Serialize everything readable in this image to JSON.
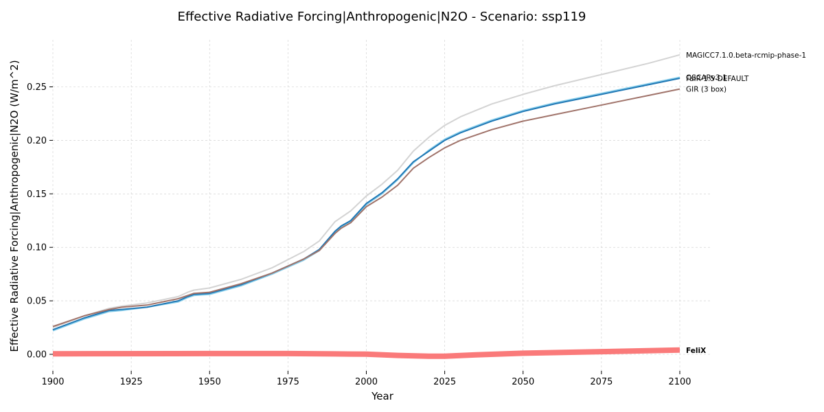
{
  "chart_data": {
    "type": "line",
    "title": "Effective Radiative Forcing|Anthropogenic|N2O - Scenario: ssp119",
    "xlabel": "Year",
    "ylabel": "Effective Radiative Forcing|Anthropogenic|N2O (W/m^2)",
    "xlim": [
      1900,
      2110
    ],
    "ylim": [
      -0.017,
      0.29
    ],
    "xticks": [
      1900,
      1925,
      1950,
      1975,
      2000,
      2025,
      2050,
      2075,
      2100
    ],
    "xtick_labels": [
      "1900",
      "1925",
      "1950",
      "1975",
      "2000",
      "2025",
      "2050",
      "2075",
      "2100"
    ],
    "yticks": [
      0.0,
      0.05,
      0.1,
      0.15,
      0.2,
      0.25
    ],
    "ytick_labels": [
      "0.00",
      "0.05",
      "0.10",
      "0.15",
      "0.20",
      "0.25"
    ],
    "grid": true,
    "legend": "end-of-line labels",
    "series": [
      {
        "name": "MAGICC7.1.0.beta-rcmip-phase-1",
        "color": "#d3d3d3",
        "bold": false,
        "x": [
          1900,
          1910,
          1918,
          1922,
          1930,
          1940,
          1943,
          1945,
          1950,
          1960,
          1970,
          1980,
          1985,
          1990,
          1992,
          1995,
          2000,
          2005,
          2010,
          2015,
          2020,
          2025,
          2030,
          2040,
          2050,
          2060,
          2070,
          2080,
          2090,
          2100
        ],
        "y": [
          0.025,
          0.036,
          0.043,
          0.045,
          0.048,
          0.054,
          0.058,
          0.06,
          0.062,
          0.07,
          0.081,
          0.096,
          0.106,
          0.124,
          0.128,
          0.134,
          0.148,
          0.159,
          0.172,
          0.19,
          0.203,
          0.214,
          0.222,
          0.234,
          0.243,
          0.251,
          0.258,
          0.265,
          0.272,
          0.28
        ]
      },
      {
        "name": "OSCARv3.1",
        "color": "#87ceeb",
        "bold": false,
        "x": [
          1900,
          1910,
          1918,
          1922,
          1930,
          1940,
          1943,
          1945,
          1950,
          1960,
          1970,
          1980,
          1985,
          1990,
          1992,
          1995,
          2000,
          2005,
          2010,
          2015,
          2020,
          2025,
          2030,
          2040,
          2050,
          2060,
          2070,
          2080,
          2090,
          2100
        ],
        "y": [
          0.022,
          0.033,
          0.04,
          0.041,
          0.044,
          0.049,
          0.053,
          0.055,
          0.056,
          0.064,
          0.075,
          0.088,
          0.097,
          0.114,
          0.119,
          0.124,
          0.14,
          0.15,
          0.163,
          0.179,
          0.191,
          0.201,
          0.208,
          0.219,
          0.228,
          0.235,
          0.241,
          0.247,
          0.253,
          0.259
        ]
      },
      {
        "name": "FaIR-1.5-DEFAULT",
        "color": "#1f77b4",
        "bold": false,
        "x": [
          1900,
          1910,
          1918,
          1922,
          1930,
          1940,
          1943,
          1945,
          1950,
          1960,
          1970,
          1980,
          1985,
          1990,
          1992,
          1995,
          2000,
          2005,
          2010,
          2015,
          2020,
          2025,
          2030,
          2040,
          2050,
          2060,
          2070,
          2080,
          2090,
          2100
        ],
        "y": [
          0.023,
          0.034,
          0.041,
          0.042,
          0.044,
          0.05,
          0.054,
          0.056,
          0.057,
          0.065,
          0.076,
          0.089,
          0.098,
          0.115,
          0.12,
          0.125,
          0.141,
          0.151,
          0.164,
          0.18,
          0.19,
          0.2,
          0.207,
          0.218,
          0.227,
          0.234,
          0.24,
          0.246,
          0.252,
          0.258
        ]
      },
      {
        "name": "GIR (3 box)",
        "color": "#a0736a",
        "bold": false,
        "x": [
          1900,
          1910,
          1918,
          1922,
          1930,
          1940,
          1943,
          1945,
          1950,
          1960,
          1970,
          1980,
          1985,
          1990,
          1992,
          1995,
          2000,
          2005,
          2010,
          2015,
          2020,
          2025,
          2030,
          2040,
          2050,
          2060,
          2070,
          2080,
          2090,
          2100
        ],
        "y": [
          0.026,
          0.036,
          0.042,
          0.044,
          0.046,
          0.052,
          0.055,
          0.057,
          0.058,
          0.066,
          0.076,
          0.089,
          0.097,
          0.113,
          0.118,
          0.123,
          0.138,
          0.147,
          0.158,
          0.174,
          0.184,
          0.193,
          0.2,
          0.21,
          0.218,
          0.224,
          0.23,
          0.236,
          0.242,
          0.248
        ]
      },
      {
        "name": "FeliX",
        "color": "#fa7a7a",
        "bold": true,
        "x": [
          1900,
          1950,
          1975,
          1990,
          2000,
          2010,
          2020,
          2025,
          2035,
          2050,
          2075,
          2100
        ],
        "y": [
          0.0005,
          0.0007,
          0.0007,
          0.0004,
          0.0001,
          -0.001,
          -0.0018,
          -0.0018,
          -0.0005,
          0.001,
          0.0025,
          0.004
        ]
      }
    ]
  }
}
